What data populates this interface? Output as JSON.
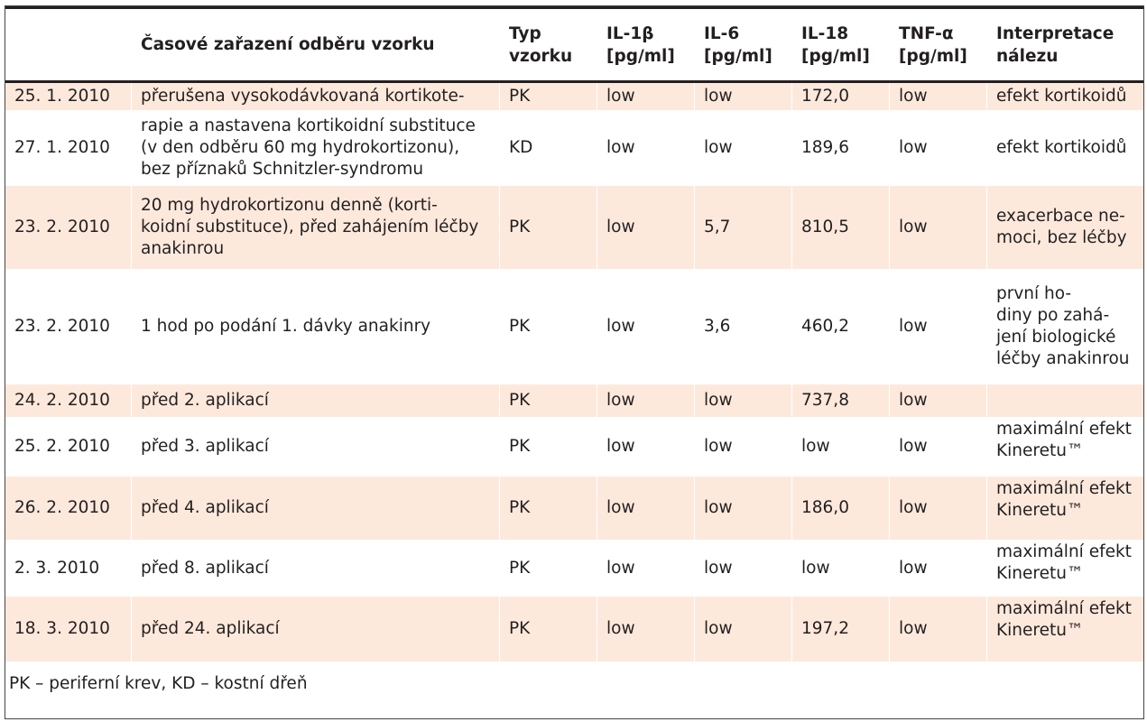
{
  "headers": {
    "date": "",
    "timing": "Časové zařazení odběru vzorku",
    "sample_type": "Typ\nvzorku",
    "il1b": "IL-1β\n[pg/ml]",
    "il6": "IL-6\n[pg/ml]",
    "il18": "IL-18\n[pg/ml]",
    "tnfa": "TNF-α\n[pg/ml]",
    "interpretation": "Interpretace\nnálezu"
  },
  "rows": [
    {
      "date": "25. 1. 2010",
      "timing": "přerušena vysokodávkovaná kortikote-",
      "type": "PK",
      "il1b": "low",
      "il6": "low",
      "il18": "172,0",
      "tnfa": "low",
      "interp": "efekt kortikoidů"
    },
    {
      "date": "27. 1. 2010",
      "timing": "rapie a nastavena kortikoidní substituce\n(v den odběru 60 mg hydrokortizonu),\nbez příznaků Schnitzler-syndromu",
      "type": "KD",
      "il1b": "low",
      "il6": "low",
      "il18": "189,6",
      "tnfa": "low",
      "interp": "efekt kortikoidů"
    },
    {
      "date": "23. 2. 2010",
      "timing": "20 mg hydrokortizonu denně (korti-\nkoidní substituce), před zahájením léčby\nanakinrou",
      "type": "PK",
      "il1b": "low",
      "il6": "5,7",
      "il18": "810,5",
      "tnfa": "low",
      "interp": "exacerbace ne-\nmoci, bez léčby"
    },
    {
      "date": "23. 2. 2010",
      "timing": "1 hod po podání 1. dávky anakinry",
      "type": "PK",
      "il1b": "low",
      "il6": "3,6",
      "il18": "460,2",
      "tnfa": "low",
      "interp": "první ho-\ndiny po zahá-\njení biologické\nléčby anakinrou"
    },
    {
      "date": "24. 2. 2010",
      "timing": "před 2. aplikací",
      "type": "PK",
      "il1b": "low",
      "il6": "low",
      "il18": "737,8",
      "tnfa": "low",
      "interp": ""
    },
    {
      "date": "25. 2. 2010",
      "timing": "před 3. aplikací",
      "type": "PK",
      "il1b": "low",
      "il6": "low",
      "il18": "low",
      "tnfa": "low",
      "interp": "maximální efekt\nKineretu™"
    },
    {
      "date": "26. 2. 2010",
      "timing": "před 4. aplikací",
      "type": "PK",
      "il1b": "low",
      "il6": "low",
      "il18": "186,0",
      "tnfa": "low",
      "interp": "maximální efekt\nKineretu™"
    },
    {
      "date": "2. 3. 2010",
      "timing": "před 8. aplikací",
      "type": "PK",
      "il1b": "low",
      "il6": "low",
      "il18": "low",
      "tnfa": "low",
      "interp": "maximální efekt\nKineretu™"
    },
    {
      "date": "18. 3. 2010",
      "timing": "před 24. aplikací",
      "type": "PK",
      "il1b": "low",
      "il6": "low",
      "il18": "197,2",
      "tnfa": "low",
      "interp": "maximální efekt\nKineretu™"
    }
  ],
  "footnote": "PK – periferní krev, KD – kostní dřeň",
  "colors": {
    "row_shade": "#fde9dc",
    "rule": "#231f20"
  }
}
